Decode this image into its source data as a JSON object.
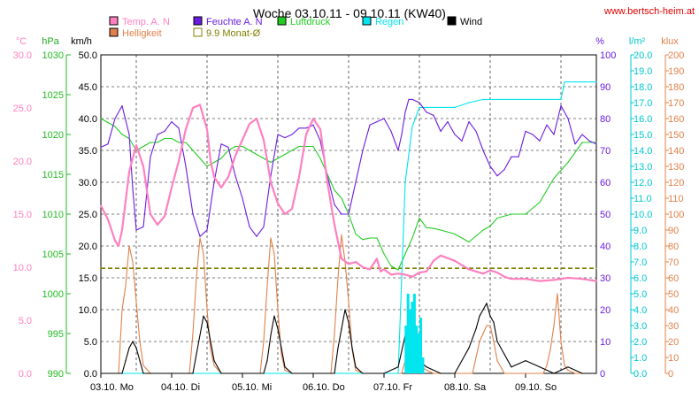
{
  "header": {
    "title": "Woche 03.10.11 - 09.10.11 (KW40)",
    "site": "www.bertsch-heim.at"
  },
  "legend": [
    {
      "id": "temp",
      "label": "Temp. A. N",
      "color": "#ff80c0"
    },
    {
      "id": "hell",
      "label": "Helligkeit",
      "color": "#e0804a"
    },
    {
      "id": "feuchte",
      "label": "Feuchte A. N",
      "color": "#6a1be0"
    },
    {
      "id": "monat",
      "label": "9.9 Monat-Ø",
      "color": "#808000"
    },
    {
      "id": "luftdruck",
      "label": "Luftdruck",
      "color": "#22cc22"
    },
    {
      "id": "regen",
      "label": "Regen",
      "color": "#00e5ee"
    },
    {
      "id": "wind",
      "label": "Wind",
      "color": "#000000"
    }
  ],
  "axes": {
    "temp": {
      "unit": "°C",
      "ticks": [
        "30.0",
        "25.0",
        "20.0",
        "15.0",
        "10.0",
        "5.0",
        "0.0"
      ],
      "color": "#ff80c0"
    },
    "press": {
      "unit": "hPa",
      "ticks": [
        "1030",
        "1025",
        "1020",
        "1015",
        "1010",
        "1005",
        "1000",
        "995",
        "990"
      ],
      "color": "#22aa22"
    },
    "wind": {
      "unit": "km/h",
      "ticks": [
        "50.0",
        "45.0",
        "40.0",
        "35.0",
        "30.0",
        "25.0",
        "20.0",
        "15.0",
        "10.0",
        "5.0",
        "0.0"
      ],
      "color": "#000000"
    },
    "hum": {
      "unit": "%",
      "ticks": [
        "100",
        "90",
        "80",
        "70",
        "60",
        "50",
        "40",
        "30",
        "20",
        "10",
        "0"
      ],
      "color": "#6a1be0"
    },
    "rain": {
      "unit": "l/m²",
      "ticks": [
        "20.0",
        "19.0",
        "18.0",
        "17.0",
        "16.0",
        "15.0",
        "14.0",
        "13.0",
        "12.0",
        "11.0",
        "10.0",
        "9.0",
        "8.0",
        "7.0",
        "6.0",
        "5.0",
        "4.0",
        "3.0",
        "2.0",
        "1.0",
        "0.0"
      ],
      "color": "#00e5ee"
    },
    "klux": {
      "unit": "klux",
      "ticks": [
        "200",
        "190",
        "180",
        "170",
        "160",
        "150",
        "140",
        "130",
        "120",
        "110",
        "100",
        "90",
        "80",
        "70",
        "60",
        "50",
        "40",
        "30",
        "20",
        "10",
        "0"
      ],
      "color": "#e0804a"
    }
  },
  "x_labels": [
    "03.10. Mo",
    "04.10. Di",
    "05.10. Mi",
    "06.10. Do",
    "07.10. Fr",
    "08.10. Sa",
    "09.10. So"
  ],
  "chart_data": {
    "type": "line",
    "title": "Woche 03.10.11 - 09.10.11 (KW40)",
    "x_unit": "days since 03.10.11 00:00",
    "xlim": [
      0,
      7
    ],
    "series": [
      {
        "name": "Temp. A. N",
        "axis": "°C",
        "ylim": [
          0,
          30
        ],
        "x": [
          0,
          0.1,
          0.2,
          0.25,
          0.3,
          0.4,
          0.5,
          0.6,
          0.7,
          0.8,
          0.9,
          1.0,
          1.1,
          1.2,
          1.3,
          1.4,
          1.5,
          1.55,
          1.6,
          1.7,
          1.8,
          1.9,
          2.0,
          2.1,
          2.2,
          2.3,
          2.4,
          2.5,
          2.6,
          2.7,
          2.8,
          2.9,
          3.0,
          3.1,
          3.2,
          3.3,
          3.4,
          3.5,
          3.6,
          3.7,
          3.8,
          3.9,
          3.95,
          4.0,
          4.1,
          4.2,
          4.3,
          4.4,
          4.5,
          4.6,
          4.7,
          4.8,
          5.0,
          5.2,
          5.4,
          5.5,
          5.6,
          5.7,
          5.8,
          6.0,
          6.2,
          6.4,
          6.6,
          6.8,
          7.0
        ],
        "values": [
          15.8,
          14.5,
          12.5,
          12.0,
          13.5,
          19.0,
          21.5,
          19.5,
          15.0,
          14.0,
          14.8,
          17.5,
          20.0,
          23.0,
          25.0,
          25.3,
          23.0,
          20.0,
          18.5,
          17.5,
          18.5,
          20.5,
          22.0,
          23.5,
          24.0,
          22.0,
          18.0,
          16.0,
          15.0,
          15.5,
          18.5,
          22.5,
          24.0,
          23.0,
          18.0,
          14.0,
          10.8,
          10.3,
          10.5,
          10.0,
          9.8,
          10.8,
          9.6,
          9.8,
          9.3,
          9.4,
          9.3,
          9.1,
          9.5,
          9.6,
          10.6,
          11.1,
          10.6,
          9.8,
          9.4,
          9.7,
          9.5,
          9.1,
          8.9,
          8.9,
          8.7,
          8.8,
          9.0,
          8.9,
          8.7
        ]
      },
      {
        "name": "Feuchte A. N",
        "axis": "%",
        "ylim": [
          0,
          100
        ],
        "x": [
          0,
          0.1,
          0.2,
          0.3,
          0.4,
          0.45,
          0.5,
          0.6,
          0.7,
          0.8,
          0.9,
          1.0,
          1.1,
          1.2,
          1.3,
          1.4,
          1.5,
          1.6,
          1.7,
          1.8,
          1.9,
          2.0,
          2.1,
          2.2,
          2.3,
          2.4,
          2.5,
          2.6,
          2.7,
          2.8,
          2.9,
          3.0,
          3.1,
          3.2,
          3.3,
          3.4,
          3.5,
          3.6,
          3.7,
          3.8,
          3.9,
          4.0,
          4.1,
          4.2,
          4.25,
          4.3,
          4.35,
          4.4,
          4.5,
          4.6,
          4.7,
          4.8,
          4.9,
          5.0,
          5.1,
          5.2,
          5.3,
          5.4,
          5.5,
          5.6,
          5.7,
          5.8,
          5.9,
          6.0,
          6.1,
          6.2,
          6.3,
          6.4,
          6.5,
          6.6,
          6.7,
          6.8,
          6.9,
          7.0
        ],
        "values": [
          71,
          72,
          80,
          84,
          75,
          58,
          45,
          46,
          68,
          75,
          76,
          79,
          77,
          65,
          50,
          43,
          45,
          60,
          72,
          71,
          62,
          55,
          46,
          43,
          46,
          62,
          75,
          74,
          75,
          77,
          77,
          78,
          73,
          62,
          53,
          50,
          50,
          60,
          70,
          78,
          79,
          80,
          76,
          70,
          75,
          82,
          86,
          86,
          85,
          82,
          81,
          76,
          79,
          75,
          73,
          79,
          76,
          70,
          65,
          62,
          64,
          68,
          68,
          76,
          75,
          73,
          78,
          75,
          84,
          80,
          72,
          75,
          73,
          72
        ]
      },
      {
        "name": "Luftdruck",
        "axis": "hPa",
        "ylim": [
          990,
          1030
        ],
        "x": [
          0,
          0.1,
          0.2,
          0.3,
          0.4,
          0.5,
          0.6,
          0.7,
          0.8,
          0.9,
          1.0,
          1.1,
          1.2,
          1.3,
          1.4,
          1.5,
          1.6,
          1.7,
          1.8,
          1.9,
          2.0,
          2.1,
          2.2,
          2.3,
          2.4,
          2.5,
          2.6,
          2.7,
          2.8,
          2.9,
          3.0,
          3.1,
          3.2,
          3.3,
          3.4,
          3.5,
          3.6,
          3.7,
          3.8,
          3.9,
          4.0,
          4.1,
          4.2,
          4.3,
          4.4,
          4.5,
          4.6,
          4.7,
          4.8,
          5.0,
          5.2,
          5.4,
          5.5,
          5.6,
          5.8,
          6.0,
          6.2,
          6.4,
          6.6,
          6.8,
          7.0
        ],
        "values": [
          1022,
          1021.5,
          1021,
          1020,
          1019.5,
          1018,
          1018.5,
          1019,
          1019,
          1019.5,
          1019.5,
          1019,
          1019,
          1018,
          1017,
          1016,
          1016.5,
          1017,
          1018,
          1018.5,
          1018.5,
          1018,
          1017.5,
          1017,
          1016.5,
          1017,
          1017.5,
          1018,
          1018.5,
          1018.5,
          1018.5,
          1017,
          1015,
          1013,
          1012,
          1010,
          1007.5,
          1006.8,
          1007,
          1007,
          1005,
          1003.5,
          1003,
          1005,
          1007,
          1009.5,
          1008.3,
          1008.2,
          1008,
          1007.5,
          1006.5,
          1008,
          1008.5,
          1009.5,
          1010,
          1010,
          1011.5,
          1014.5,
          1016.5,
          1019,
          1019
        ]
      },
      {
        "name": "Regen",
        "axis": "l/m²",
        "ylim": [
          0,
          20
        ],
        "x": [
          0,
          4.2,
          4.25,
          4.3,
          4.4,
          4.5,
          4.6,
          4.8,
          5.0,
          5.2,
          5.4,
          5.6,
          6.0,
          6.2,
          6.4,
          6.5,
          6.55,
          6.6,
          6.8,
          7.0
        ],
        "values": [
          0,
          0,
          6,
          12,
          15.5,
          16.7,
          16.7,
          16.7,
          16.7,
          17.0,
          17.2,
          17.2,
          17.2,
          17.2,
          17.2,
          17.2,
          18.3,
          18.3,
          18.3,
          18.3
        ]
      },
      {
        "name": "Helligkeit",
        "axis": "klux",
        "ylim": [
          0,
          200
        ],
        "x": [
          0,
          0.25,
          0.3,
          0.35,
          0.4,
          0.45,
          0.5,
          0.55,
          0.6,
          0.7,
          1.0,
          1.25,
          1.3,
          1.35,
          1.4,
          1.45,
          1.5,
          1.55,
          1.6,
          1.7,
          2.0,
          2.25,
          2.3,
          2.35,
          2.4,
          2.45,
          2.5,
          2.55,
          2.6,
          2.7,
          3.0,
          3.25,
          3.3,
          3.35,
          3.4,
          3.45,
          3.5,
          3.55,
          3.6,
          3.7,
          4.0,
          4.25,
          4.3,
          4.35,
          4.4,
          4.5,
          4.6,
          4.7,
          5.0,
          5.25,
          5.3,
          5.35,
          5.4,
          5.45,
          5.5,
          5.55,
          5.6,
          5.7,
          6.0,
          6.25,
          6.3,
          6.35,
          6.4,
          6.45,
          6.5,
          6.55,
          6.6,
          6.7,
          7.0
        ],
        "values": [
          0,
          0,
          40,
          55,
          80,
          70,
          45,
          20,
          5,
          0,
          0,
          0,
          25,
          60,
          85,
          75,
          40,
          15,
          5,
          0,
          0,
          0,
          20,
          55,
          85,
          75,
          40,
          12,
          2,
          0,
          0,
          0,
          25,
          60,
          87,
          70,
          45,
          15,
          2,
          0,
          0,
          0,
          8,
          12,
          6,
          5,
          2,
          0,
          0,
          0,
          10,
          20,
          25,
          30,
          30,
          20,
          8,
          0,
          0,
          0,
          5,
          15,
          30,
          50,
          20,
          5,
          2,
          0,
          0
        ]
      },
      {
        "name": "Wind",
        "axis": "km/h",
        "ylim": [
          0,
          50
        ],
        "x": [
          0,
          0.3,
          0.35,
          0.4,
          0.45,
          0.5,
          0.55,
          0.6,
          1.0,
          1.3,
          1.35,
          1.4,
          1.45,
          1.5,
          1.55,
          1.6,
          1.7,
          2.0,
          2.3,
          2.35,
          2.4,
          2.45,
          2.5,
          2.55,
          2.6,
          2.7,
          3.0,
          3.3,
          3.35,
          3.4,
          3.45,
          3.5,
          3.55,
          3.6,
          3.7,
          4.0,
          4.2,
          4.3,
          4.4,
          4.5,
          4.6,
          4.8,
          5.0,
          5.2,
          5.3,
          5.35,
          5.4,
          5.45,
          5.5,
          5.55,
          5.6,
          5.7,
          5.8,
          6.0,
          6.2,
          6.4,
          6.6,
          6.8,
          7.0
        ],
        "values": [
          0,
          0,
          2,
          4,
          5,
          4,
          2,
          0,
          0,
          0,
          3,
          6,
          9,
          8,
          5,
          2,
          0,
          0,
          0,
          2,
          6,
          9,
          7,
          4,
          1,
          0,
          0,
          0,
          4,
          7,
          10,
          8,
          4,
          1,
          0,
          0,
          1,
          6,
          3,
          2,
          1,
          0,
          0,
          4,
          7,
          9,
          10,
          11,
          9,
          8,
          5,
          3,
          1,
          2,
          1,
          0,
          1,
          0,
          0
        ]
      },
      {
        "name": "9.9 Monat-Ø",
        "axis": "°C",
        "ylim": [
          0,
          30
        ],
        "x": [
          0,
          7
        ],
        "values": [
          9.9,
          9.9
        ]
      }
    ]
  }
}
